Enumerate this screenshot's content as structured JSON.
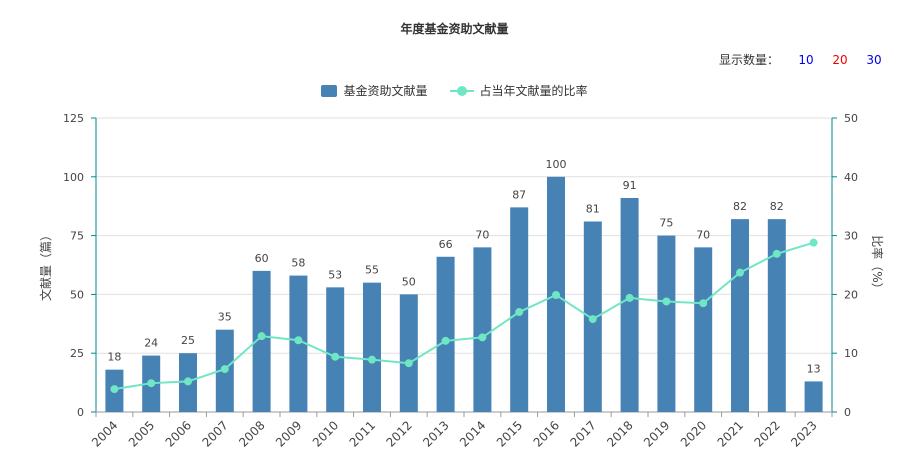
{
  "title": "年度基金资助文献量",
  "display_count": {
    "label": "显示数量：",
    "options": [
      "10",
      "20",
      "30"
    ],
    "option_colors": [
      "#0000ee",
      "#ee0000",
      "#0000ee"
    ]
  },
  "legend": {
    "bar_label": "基金资助文献量",
    "line_label": "占当年文献量的比率"
  },
  "colors": {
    "bar": "#4682b4",
    "line": "#6fe7c4",
    "axis": "#008b8b",
    "grid": "#e0e0e0"
  },
  "chart_data": {
    "type": "bar",
    "categories": [
      "2004",
      "2005",
      "2006",
      "2007",
      "2008",
      "2009",
      "2010",
      "2011",
      "2012",
      "2013",
      "2014",
      "2015",
      "2016",
      "2017",
      "2018",
      "2019",
      "2020",
      "2021",
      "2022",
      "2023"
    ],
    "series": [
      {
        "name": "基金资助文献量",
        "type": "bar",
        "axis": "left",
        "values": [
          18,
          24,
          25,
          35,
          60,
          58,
          53,
          55,
          50,
          66,
          70,
          87,
          100,
          81,
          91,
          75,
          70,
          82,
          82,
          13
        ]
      },
      {
        "name": "占当年文献量的比率",
        "type": "line",
        "axis": "right",
        "values": [
          3.9,
          4.9,
          5.2,
          7.3,
          12.9,
          12.2,
          9.4,
          8.9,
          8.3,
          12.1,
          12.7,
          17.0,
          19.9,
          15.8,
          19.4,
          18.8,
          18.5,
          23.7,
          26.9,
          28.8
        ]
      }
    ],
    "ylabel": "文献量（篇）",
    "ylabel_right": "比率（%）",
    "ylim": [
      0,
      125
    ],
    "ylim_right": [
      0,
      50
    ],
    "yticks": [
      "0",
      "25",
      "50",
      "75",
      "100",
      "125"
    ],
    "yticks_right": [
      "0",
      "10",
      "20",
      "30",
      "40",
      "50"
    ],
    "grid": true,
    "legend_position": "top-center"
  }
}
